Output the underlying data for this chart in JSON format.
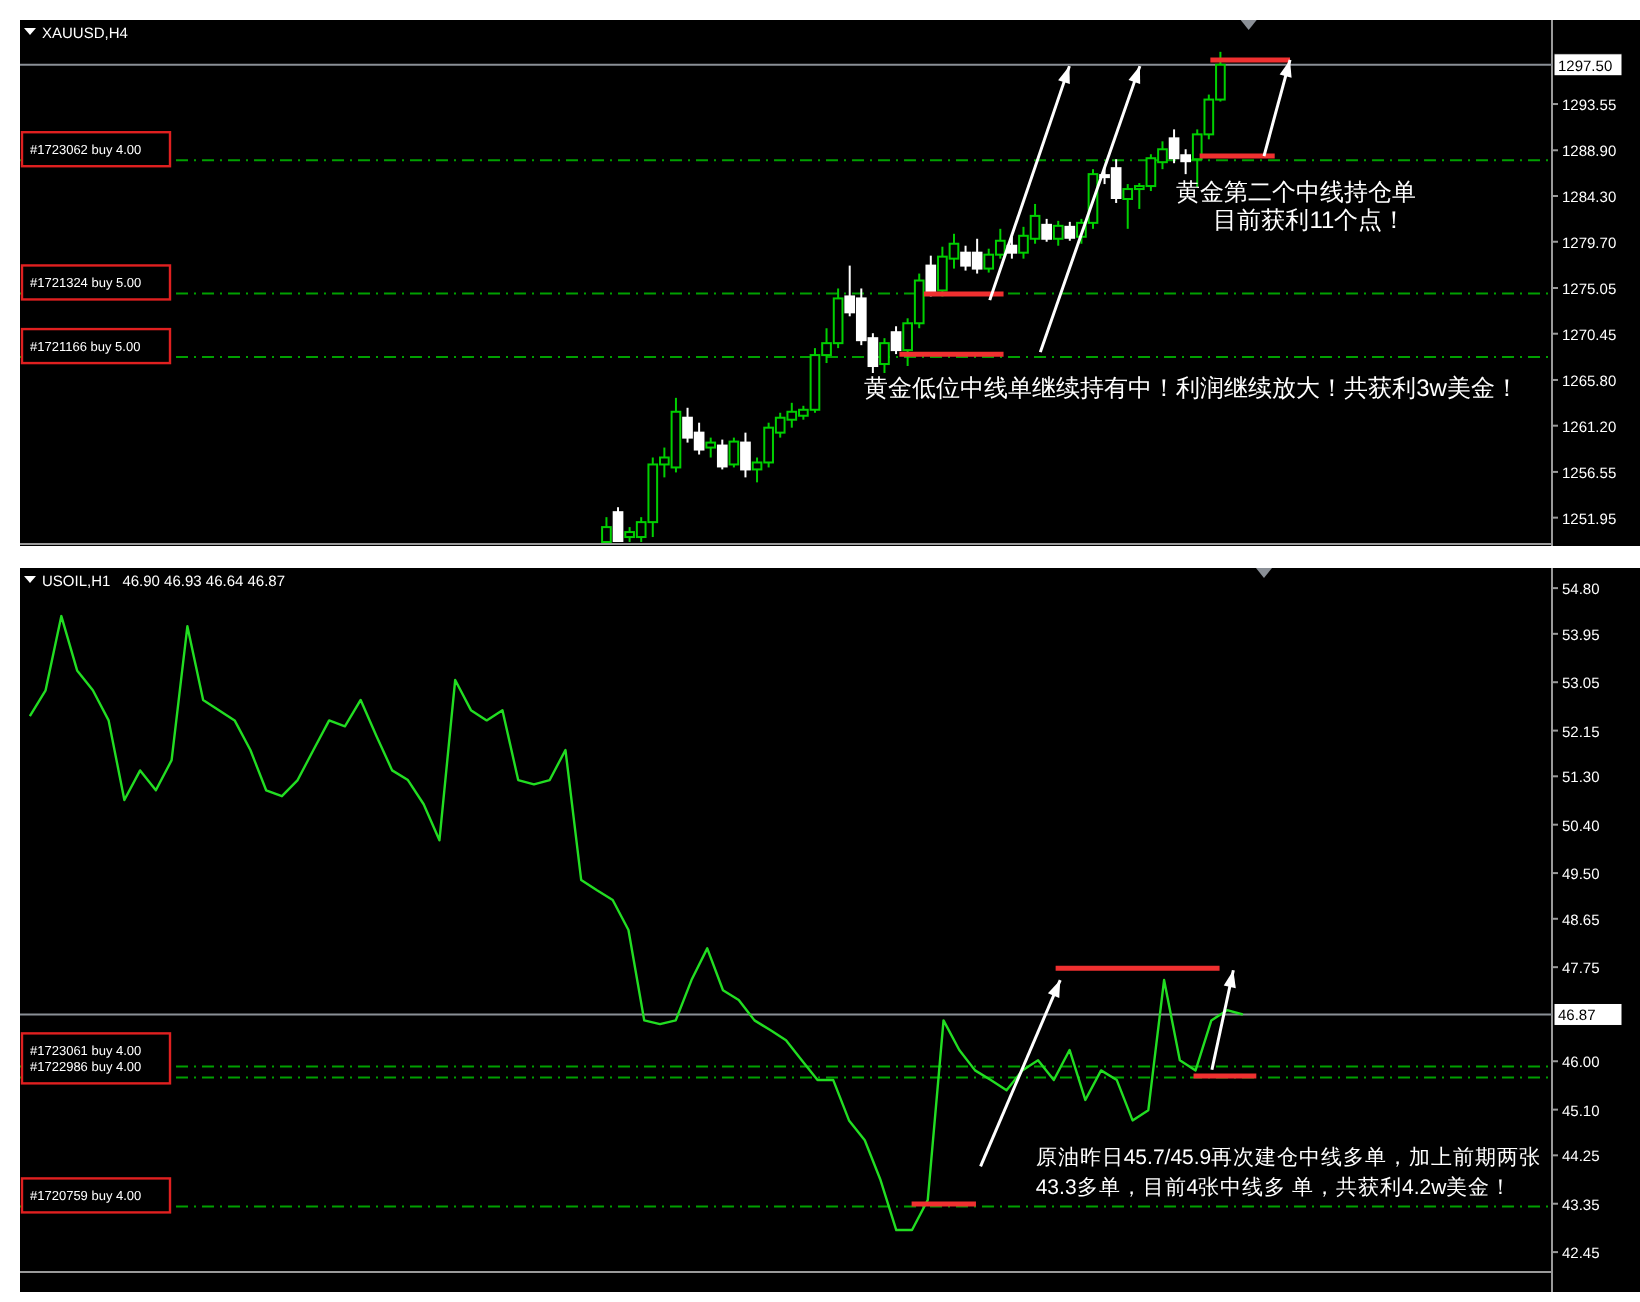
{
  "chart_data": [
    {
      "type": "candlestick",
      "title": "XAUUSD,H4",
      "tick_labels": "y",
      "categories": [
        null,
        null,
        null,
        null,
        null,
        null,
        null,
        null,
        null,
        null,
        null,
        null,
        null,
        null,
        null,
        null,
        null,
        null,
        null,
        null,
        null,
        null,
        null,
        null,
        null,
        null,
        null,
        null,
        null,
        null,
        null,
        null,
        null,
        null,
        null,
        null,
        null,
        null,
        null,
        null,
        null,
        null,
        null,
        null,
        null,
        null,
        null,
        null,
        null,
        null,
        null,
        null,
        null,
        null,
        null,
        null,
        null,
        null,
        null,
        null,
        null,
        null,
        null,
        null,
        null,
        null,
        null,
        null,
        null,
        null,
        null,
        null,
        null,
        null,
        null,
        null,
        null,
        null,
        null,
        null,
        null,
        null,
        null,
        null,
        null,
        null,
        null,
        null,
        null,
        null,
        null,
        null,
        null,
        null,
        null,
        null,
        null,
        null,
        null,
        null,
        null,
        null,
        null,
        null,
        null,
        null,
        null,
        null,
        null,
        null,
        null,
        null,
        null,
        null,
        null,
        null,
        null,
        null,
        null,
        null,
        null,
        null,
        null,
        null,
        null,
        null,
        null,
        null,
        null,
        null,
        null,
        null
      ],
      "ohlc": [
        null,
        null,
        null,
        null,
        null,
        null,
        null,
        null,
        null,
        null,
        null,
        null,
        null,
        null,
        null,
        null,
        null,
        null,
        null,
        null,
        null,
        null,
        null,
        null,
        null,
        null,
        null,
        null,
        null,
        null,
        null,
        null,
        null,
        null,
        null,
        null,
        null,
        null,
        null,
        null,
        null,
        null,
        null,
        null,
        null,
        null,
        null,
        null,
        null,
        null,
        [
          1249.5,
          1252,
          1249.5,
          1251
        ],
        [
          1252.5,
          1253,
          1249.5,
          1249.6
        ],
        [
          1250,
          1251,
          1249.5,
          1250.5
        ],
        [
          1250,
          1252,
          1249.5,
          1251.5
        ],
        [
          1251.5,
          1258,
          1250,
          1257.3
        ],
        [
          1257.3,
          1259,
          1256,
          1258
        ],
        [
          1257,
          1264,
          1256.5,
          1262.6
        ],
        [
          1262,
          1263,
          1259.5,
          1260
        ],
        [
          1260.5,
          1261.5,
          1258.3,
          1258.8
        ],
        [
          1259,
          1260,
          1258,
          1259.5
        ],
        [
          1259.2,
          1259.8,
          1256.8,
          1257.1
        ],
        [
          1257.3,
          1260,
          1257,
          1259.6
        ],
        [
          1259.5,
          1260.5,
          1256,
          1256.8
        ],
        [
          1256.8,
          1258,
          1255.5,
          1257.5
        ],
        [
          1257.5,
          1261.5,
          1257,
          1261
        ],
        [
          1260.5,
          1262.5,
          1260,
          1262
        ],
        [
          1261.8,
          1263.5,
          1261,
          1262.6
        ],
        [
          1262.2,
          1263.2,
          1261.8,
          1262.8
        ],
        [
          1262.8,
          1269,
          1262.5,
          1268.3
        ],
        [
          1268.3,
          1271,
          1267.5,
          1269.5
        ],
        [
          1269.5,
          1275,
          1269,
          1274
        ],
        [
          1274.2,
          1277.3,
          1272.2,
          1272.6
        ],
        [
          1274,
          1275,
          1269.3,
          1269.8
        ],
        [
          1270,
          1270.5,
          1266.5,
          1267.2
        ],
        [
          1267.4,
          1270,
          1266.5,
          1269.5
        ],
        [
          1270.6,
          1271.2,
          1268.4,
          1268.8
        ],
        [
          1268.8,
          1272,
          1267.2,
          1271.5
        ],
        [
          1271.5,
          1276.5,
          1271,
          1275.8
        ],
        [
          1277.3,
          1278.3,
          1274.2,
          1274.7
        ],
        [
          1274.8,
          1279.2,
          1274.2,
          1278.2
        ],
        [
          1278,
          1280.5,
          1277,
          1279.5
        ],
        [
          1278.6,
          1279.3,
          1276.8,
          1277.3
        ],
        [
          1278.6,
          1280,
          1276.5,
          1277
        ],
        [
          1277,
          1279,
          1276.6,
          1278.4
        ],
        [
          1278.4,
          1281,
          1278,
          1279.8
        ],
        [
          1279.3,
          1280.2,
          1278,
          1278.6
        ],
        [
          1278.6,
          1281.2,
          1278,
          1280.3
        ],
        [
          1280,
          1283.5,
          1279.5,
          1282.3
        ],
        [
          1281.4,
          1282,
          1279.7,
          1280
        ],
        [
          1280,
          1281.8,
          1279.3,
          1281.3
        ],
        [
          1281.2,
          1281.7,
          1279.8,
          1280.1
        ],
        [
          1280.2,
          1282,
          1279.5,
          1281.6
        ],
        [
          1281.6,
          1287,
          1281,
          1286.5
        ],
        [
          1286.4,
          1287.2,
          1285.5,
          1286.2
        ],
        [
          1287.1,
          1288,
          1283.6,
          1284.1
        ],
        [
          1284,
          1285.5,
          1281,
          1285
        ],
        [
          1285,
          1285.6,
          1283,
          1285.3
        ],
        [
          1285.3,
          1288.5,
          1284.8,
          1288.1
        ],
        [
          1287.7,
          1289.8,
          1287,
          1289
        ],
        [
          1290.1,
          1291,
          1287.6,
          1288.1
        ],
        [
          1288.4,
          1289,
          1286.5,
          1287.8
        ],
        [
          1288,
          1291,
          1285.2,
          1290.5
        ],
        [
          1290.5,
          1294.5,
          1290,
          1294
        ],
        [
          1294,
          1298.8,
          1293.8,
          1297.5
        ],
        null,
        null,
        null,
        null,
        null,
        null,
        null,
        null,
        null,
        null,
        null,
        null,
        null,
        null,
        null,
        null,
        null,
        null,
        null,
        null,
        null,
        null,
        null,
        null,
        null,
        null,
        null,
        null
      ],
      "colors": [
        null,
        null,
        null,
        null,
        null,
        null,
        null,
        null,
        null,
        null,
        null,
        null,
        null,
        null,
        null,
        null,
        null,
        null,
        null,
        null,
        null,
        null,
        null,
        null,
        null,
        null,
        null,
        null,
        null,
        null,
        null,
        null,
        null,
        null,
        null,
        null,
        null,
        null,
        null,
        null,
        null,
        null,
        null,
        null,
        null,
        null,
        null,
        null,
        null,
        null,
        "#00d000",
        "#ffffff",
        "#00d000",
        "#00d000",
        "#00d000",
        "#00d000",
        "#00d000",
        "#ffffff",
        "#ffffff",
        "#00d000",
        "#ffffff",
        "#00d000",
        "#ffffff",
        "#00d000",
        "#00d000",
        "#00d000",
        "#00d000",
        "#00d000",
        "#00d000",
        "#00d000",
        "#00d000",
        "#ffffff",
        "#ffffff",
        "#ffffff",
        "#00d000",
        "#ffffff",
        "#00d000",
        "#00d000",
        "#ffffff",
        "#00d000",
        "#00d000",
        "#ffffff",
        "#ffffff",
        "#00d000",
        "#00d000",
        "#ffffff",
        "#00d000",
        "#00d000",
        "#ffffff",
        "#00d000",
        "#ffffff",
        "#00d000",
        "#00d000",
        "#ffffff",
        "#ffffff",
        "#00d000",
        "#00d000",
        "#00d000",
        "#00d000",
        "#ffffff",
        "#ffffff",
        "#00d000",
        "#00d000",
        "#00d000",
        null,
        null,
        null,
        null,
        null,
        null,
        null,
        null,
        null,
        null,
        null,
        null,
        null,
        null,
        null,
        null,
        null,
        null,
        null,
        null,
        null,
        null,
        null,
        null,
        null,
        null,
        null,
        null
      ],
      "ylim": [
        1249.3,
        1301.6
      ],
      "yticks": [
        {
          "value": 1293.55,
          "label": "1293.55"
        },
        {
          "value": 1288.9,
          "label": "1288.90"
        },
        {
          "value": 1284.3,
          "label": "1284.30"
        },
        {
          "value": 1279.7,
          "label": "1279.70"
        },
        {
          "value": 1275.05,
          "label": "1275.05"
        },
        {
          "value": 1270.45,
          "label": "1270.45"
        },
        {
          "value": 1265.8,
          "label": "1265.80"
        },
        {
          "value": 1261.2,
          "label": "1261.20"
        },
        {
          "value": 1256.55,
          "label": "1256.55"
        },
        {
          "value": 1251.95,
          "label": "1251.95"
        }
      ],
      "ref_lines": [
        {
          "axis": "y",
          "value": 1297.5,
          "label": "1297.50",
          "color": "#8a8f96",
          "line_style": "solid"
        },
        {
          "axis": "y",
          "value": 1287.9,
          "label": "#1723062 buy 4.00",
          "color": "#00a000",
          "line_style": "dashed"
        },
        {
          "axis": "y",
          "value": 1274.5,
          "label": "#1721324 buy 5.00",
          "color": "#00a000",
          "line_style": "dashed"
        },
        {
          "axis": "y",
          "value": 1268.1,
          "label": "#1721166 buy 5.00",
          "color": "#00a000",
          "line_style": "dashed"
        }
      ],
      "annotations": [
        "黄金第二个中线持仓单",
        "目前获利11个点！",
        "黄金低位中线单继续持有中！利润继续放大！共获利3w美金！"
      ]
    },
    {
      "type": "line",
      "title": "USOIL,H1",
      "subtitle": "46.90 46.93 46.64 46.87",
      "tick_labels": "y",
      "marker": "none",
      "line_style": "solid",
      "categories": [
        null,
        null,
        null,
        null,
        null,
        null,
        null,
        null,
        null,
        null,
        null,
        null,
        null,
        null,
        null,
        null,
        null,
        null,
        null,
        null,
        null,
        null,
        null,
        null,
        null,
        null,
        null,
        null,
        null,
        null,
        null,
        null,
        null,
        null,
        null,
        null,
        null,
        null,
        null,
        null,
        null,
        null,
        null,
        null,
        null,
        null,
        null,
        null,
        null,
        null,
        null,
        null,
        null,
        null,
        null,
        null,
        null,
        null,
        null,
        null,
        null,
        null,
        null,
        null,
        null,
        null,
        null,
        null,
        null,
        null,
        null,
        null,
        null,
        null,
        null,
        null,
        null,
        null,
        null,
        null,
        null,
        null,
        null,
        null,
        null,
        null,
        null,
        null,
        null,
        null,
        null,
        null,
        null,
        null,
        null,
        null,
        null
      ],
      "series": [
        {
          "color": "#22dd22",
          "values": [
            52.42,
            52.9,
            54.28,
            53.27,
            52.9,
            52.34,
            50.86,
            51.41,
            51.04,
            51.6,
            54.09,
            52.72,
            52.53,
            52.34,
            51.79,
            51.04,
            50.93,
            51.23,
            51.79,
            52.34,
            52.23,
            52.72,
            52.05,
            51.41,
            51.23,
            50.78,
            50.11,
            53.09,
            52.53,
            52.34,
            52.53,
            51.23,
            51.15,
            51.23,
            51.79,
            49.37,
            49.18,
            49.0,
            48.44,
            46.76,
            46.69,
            46.76,
            47.51,
            48.1,
            47.32,
            47.14,
            46.76,
            46.58,
            46.39,
            46.02,
            45.65,
            45.65,
            44.9,
            44.53,
            43.79,
            42.86,
            42.86,
            43.42,
            46.76,
            46.21,
            45.83,
            45.65,
            45.46,
            45.83,
            46.02,
            45.65,
            46.21,
            45.28,
            45.83,
            45.65,
            44.9,
            45.09,
            47.51,
            46.02,
            45.83,
            46.76,
            46.95,
            46.87,
            null,
            null,
            null,
            null,
            null,
            null,
            null,
            null,
            null,
            null,
            null,
            null,
            null,
            null,
            null,
            null,
            null,
            null,
            null
          ]
        }
      ],
      "ylim": [
        42.08,
        55.1
      ],
      "yticks": [
        {
          "value": 54.8,
          "label": "54.80"
        },
        53.95,
        53.05,
        52.15,
        {
          "value": 51.3,
          "label": "51.30"
        },
        {
          "value": 50.4,
          "label": "50.40"
        },
        {
          "value": 49.5,
          "label": "49.50"
        },
        48.65,
        47.75,
        {
          "value": 46,
          "label": "46.00"
        },
        {
          "value": 45.1,
          "label": "45.10"
        },
        44.25,
        43.35,
        42.45
      ],
      "ref_lines": [
        {
          "axis": "y",
          "value": 46.87,
          "label": "46.87",
          "color": "#8a8f96",
          "line_style": "solid"
        },
        {
          "axis": "y",
          "value": 45.9,
          "label": "#1723061 buy 4.00",
          "color": "#00a000",
          "line_style": "dashed"
        },
        {
          "axis": "y",
          "value": 45.7,
          "label": "#1722986 buy 4.00",
          "color": "#00a000",
          "line_style": "dashed"
        },
        {
          "axis": "y",
          "value": 43.3,
          "label": "#1720759 buy 4.00",
          "color": "#00a000",
          "line_style": "dashed"
        }
      ],
      "annotations": [
        "原油昨日45.7/45.9再次建仓中线多单，加上前期两张",
        "43.3多单，目前4张中线多 单，共获利4.2w美金！"
      ]
    }
  ]
}
